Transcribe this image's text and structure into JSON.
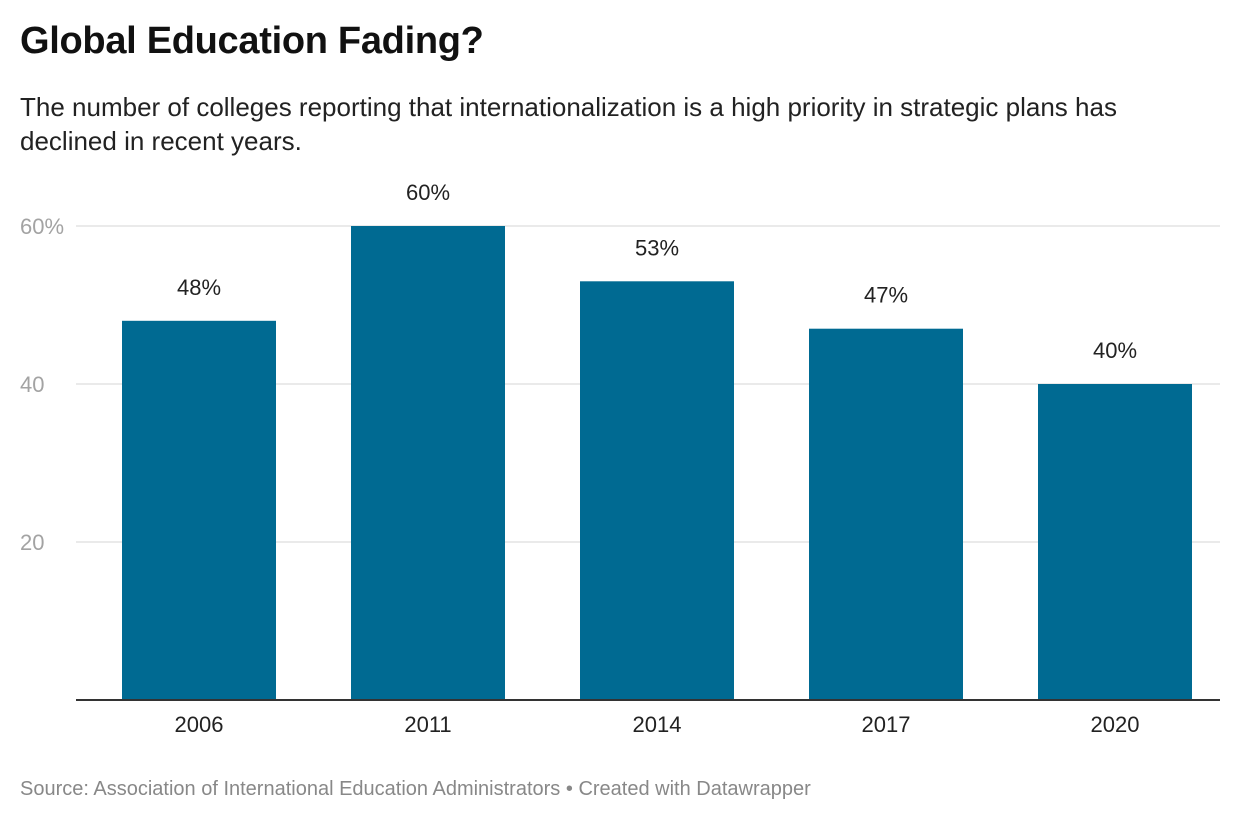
{
  "title": "Global Education Fading?",
  "subtitle": "The number of colleges reporting that internationalization is a high priority in strategic plans has declined in recent years.",
  "footer": {
    "source": "Source: Association of International Education Administrators",
    "separator": "•",
    "credit": "Created with Datawrapper"
  },
  "colors": {
    "bar": "#006a92",
    "grid": "#e3e3e3",
    "axis": "#333333"
  },
  "chart_data": {
    "type": "bar",
    "title": "Global Education Fading?",
    "categories": [
      "2006",
      "2011",
      "2014",
      "2017",
      "2020"
    ],
    "values": [
      48,
      60,
      53,
      47,
      40
    ],
    "value_labels": [
      "48%",
      "60%",
      "53%",
      "47%",
      "40%"
    ],
    "xlabel": "",
    "ylabel": "",
    "ylim": [
      0,
      60
    ],
    "yticks": [
      20,
      40,
      60
    ],
    "ytick_labels": [
      "20",
      "40",
      "60%"
    ],
    "grid": true,
    "legend": "none"
  }
}
